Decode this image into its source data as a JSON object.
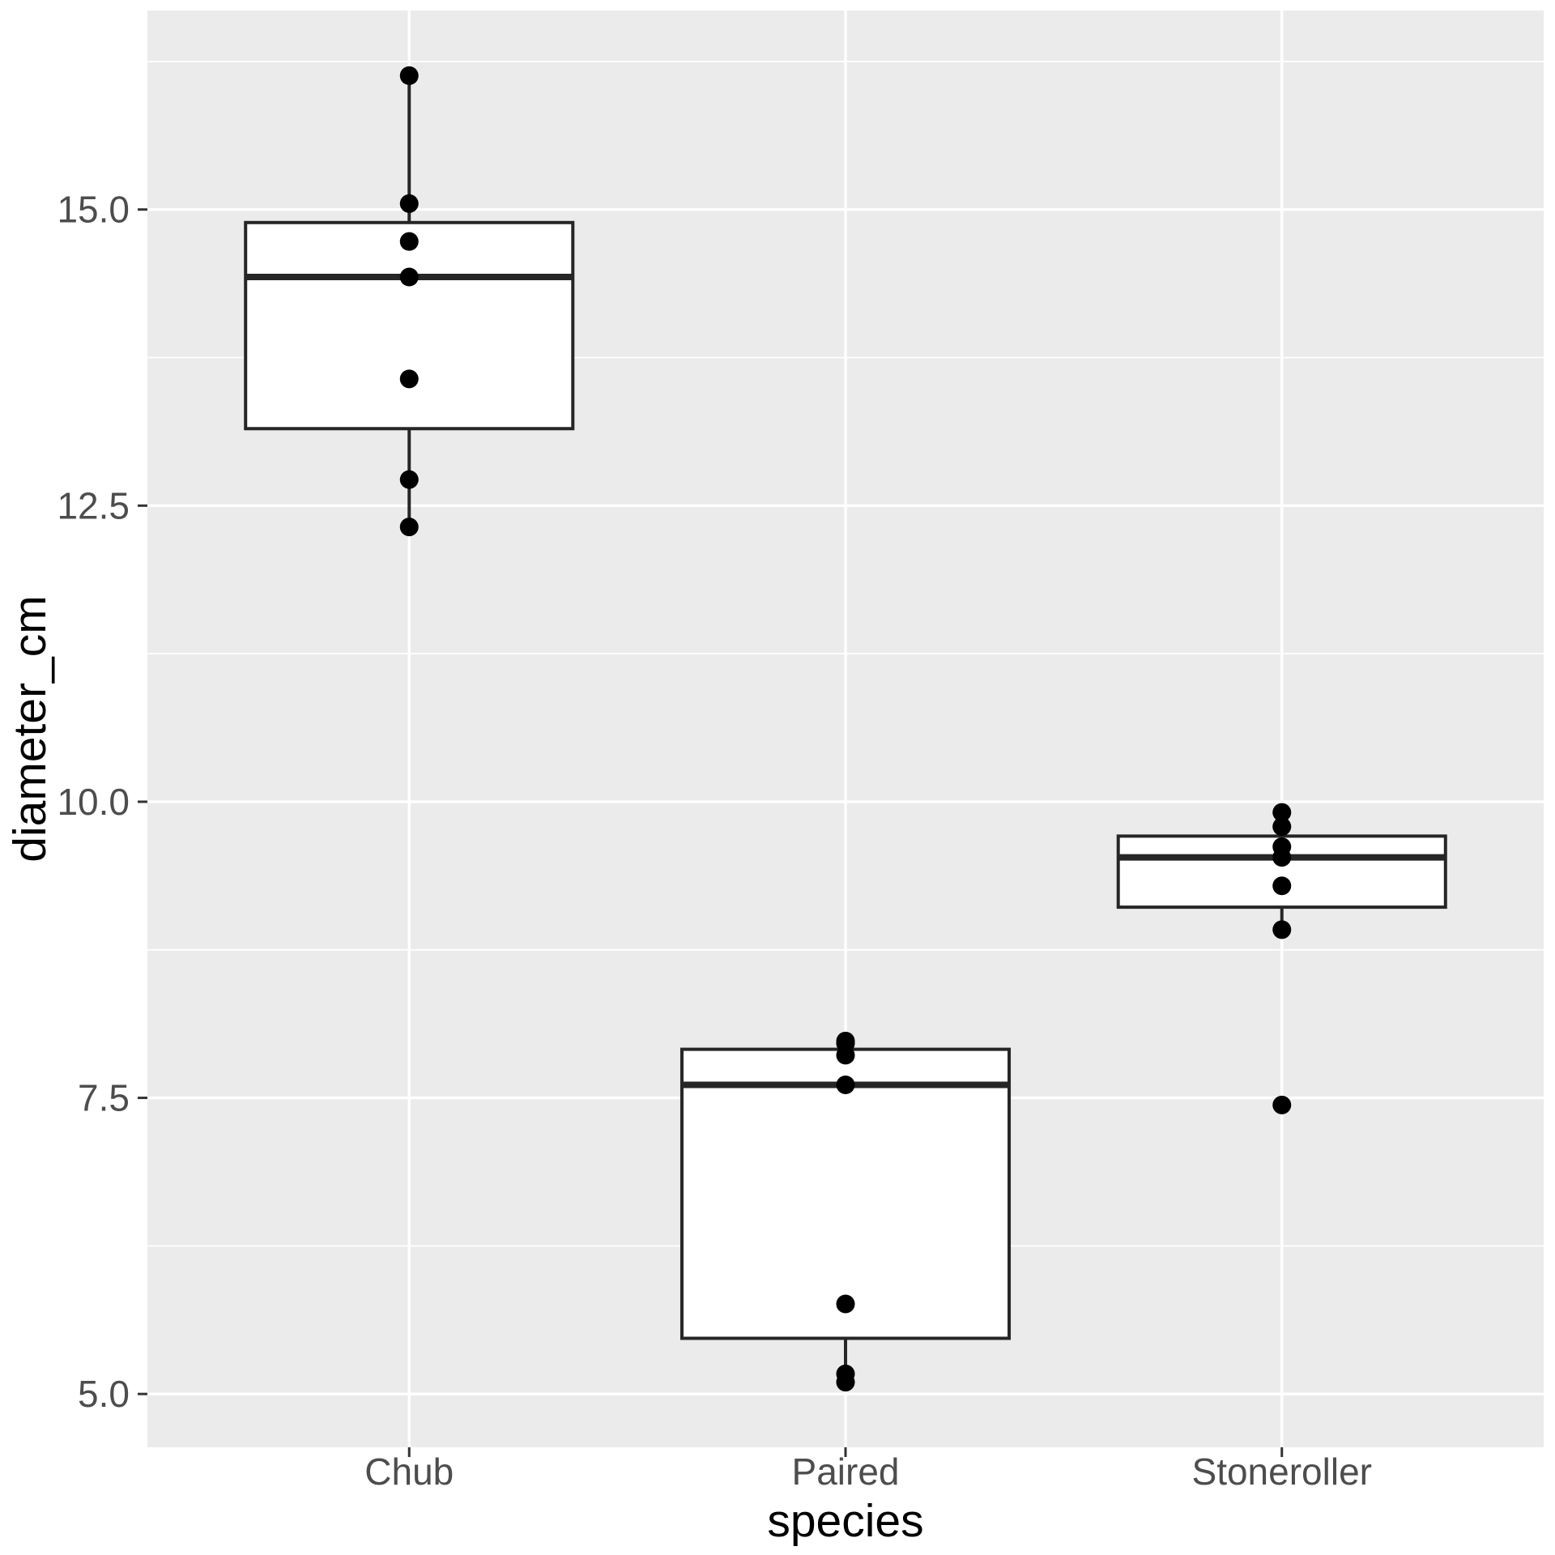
{
  "chart_data": {
    "type": "boxplot",
    "title": "",
    "xlabel": "species",
    "ylabel": "diameter_cm",
    "categories": [
      "Chub",
      "Paired",
      "Stoneroller"
    ],
    "y_axis": {
      "tick_values": [
        15.0,
        12.5,
        10.0,
        7.5,
        5.0
      ],
      "tick_labels": [
        "15.0",
        "12.5",
        "10.0",
        "7.5",
        "5.0"
      ],
      "minor_tick_values": [
        16.25,
        13.75,
        11.25,
        8.75,
        6.25
      ],
      "limits": [
        4.55,
        16.68
      ],
      "grid": "on",
      "legend": "none"
    },
    "series": [
      {
        "name": "Chub",
        "points": [
          16.13,
          15.05,
          14.73,
          14.43,
          13.57,
          12.72,
          12.32
        ],
        "box": {
          "q1": 13.15,
          "median": 14.43,
          "q3": 14.89,
          "whisker_low": 12.32,
          "whisker_high": 16.13,
          "outliers": []
        }
      },
      {
        "name": "Paired",
        "points": [
          7.98,
          7.96,
          7.86,
          7.61,
          5.76,
          5.17,
          5.1
        ],
        "box": {
          "q1": 5.47,
          "median": 7.61,
          "q3": 7.91,
          "whisker_low": 5.1,
          "whisker_high": 7.98,
          "outliers": []
        }
      },
      {
        "name": "Stoneroller",
        "points": [
          9.91,
          9.79,
          9.62,
          9.53,
          9.29,
          8.92,
          7.44
        ],
        "box": {
          "q1": 9.11,
          "median": 9.53,
          "q3": 9.71,
          "whisker_low": 8.92,
          "whisker_high": 9.91,
          "outliers": [
            7.44
          ]
        }
      }
    ],
    "style": {
      "panel_bg": "#EBEBEB",
      "grid_color": "#FFFFFF",
      "box_fill": "#FFFFFF",
      "box_stroke": "#262626",
      "point_color": "#000000",
      "tick_text_color": "#4D4D4D",
      "axis_title_color": "#000000",
      "tick_mark_color": "#333333"
    }
  }
}
